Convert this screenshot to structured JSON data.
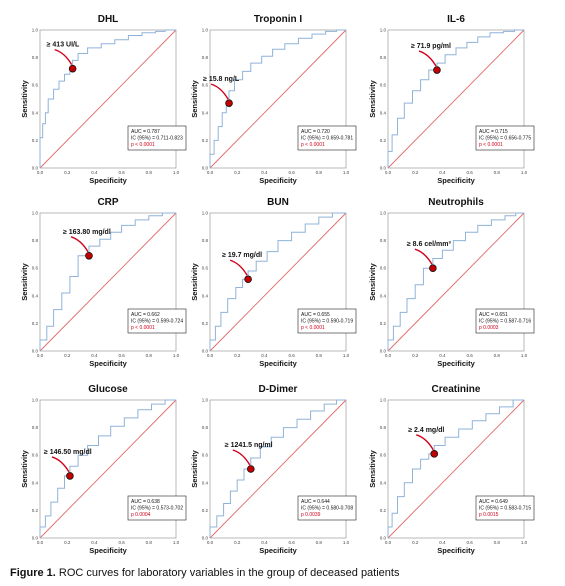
{
  "caption": {
    "label": "Figure 1.",
    "text": " ROC curves for laboratory variables in the group of deceased patients"
  },
  "colors": {
    "curve": "#8fb3d9",
    "reference": "#e06a6a",
    "marker": "#c40000",
    "arrow": "#d0021b",
    "p_text": "#d0021b"
  },
  "chart_data": [
    {
      "type": "line",
      "title": "DHL",
      "xlabel": "Specificity",
      "ylabel": "Sensitivity",
      "xlim": [
        0,
        1
      ],
      "ylim": [
        0,
        1
      ],
      "ticks": [
        "0.0",
        "0.2",
        "0.4",
        "0.6",
        "0.8",
        "1.0"
      ],
      "cutoff": {
        "label": "≥ 413 UI/L",
        "x": 0.24,
        "y": 0.72
      },
      "stats": {
        "auc": "AUC = 0.787",
        "ic": "IC (95%) = 0.711-0.823",
        "p": "p < 0.0001"
      },
      "series": [
        {
          "x": [
            0,
            0.02,
            0.04,
            0.06,
            0.1,
            0.14,
            0.18,
            0.22,
            0.24,
            0.28,
            0.35,
            0.45,
            0.55,
            0.65,
            0.75,
            0.85,
            0.92,
            1
          ],
          "y": [
            0,
            0.22,
            0.32,
            0.4,
            0.5,
            0.57,
            0.63,
            0.68,
            0.72,
            0.78,
            0.83,
            0.87,
            0.9,
            0.93,
            0.96,
            0.98,
            0.99,
            1
          ]
        },
        {
          "x": [
            0,
            1
          ],
          "y": [
            0,
            1
          ]
        }
      ]
    },
    {
      "type": "line",
      "title": "Troponin I",
      "xlabel": "Specificity",
      "ylabel": "Sensitivity",
      "xlim": [
        0,
        1
      ],
      "ylim": [
        0,
        1
      ],
      "ticks": [
        "0.0",
        "0.2",
        "0.4",
        "0.6",
        "0.8",
        "1.0"
      ],
      "cutoff": {
        "label": "≥ 15.8 ng/L",
        "x": 0.14,
        "y": 0.47
      },
      "stats": {
        "auc": "AUC = 0.720",
        "ic": "IC (95%) = 0.659-0.781",
        "p": "p < 0.0001"
      },
      "series": [
        {
          "x": [
            0,
            0.03,
            0.06,
            0.09,
            0.12,
            0.14,
            0.18,
            0.24,
            0.3,
            0.38,
            0.46,
            0.55,
            0.65,
            0.75,
            0.85,
            0.93,
            1
          ],
          "y": [
            0,
            0.1,
            0.2,
            0.3,
            0.4,
            0.47,
            0.56,
            0.64,
            0.7,
            0.76,
            0.81,
            0.86,
            0.9,
            0.94,
            0.97,
            0.99,
            1
          ]
        },
        {
          "x": [
            0,
            1
          ],
          "y": [
            0,
            1
          ]
        }
      ]
    },
    {
      "type": "line",
      "title": "IL-6",
      "xlabel": "Specificity",
      "ylabel": "Sensitivity",
      "xlim": [
        0,
        1
      ],
      "ylim": [
        0,
        1
      ],
      "ticks": [
        "0.0",
        "0.2",
        "0.4",
        "0.6",
        "0.8",
        "1.0"
      ],
      "cutoff": {
        "label": "≥ 71.9 pg/ml",
        "x": 0.36,
        "y": 0.71
      },
      "stats": {
        "auc": "AUC = 0.715",
        "ic": "IC (95%) = 0.656-0.775",
        "p": "p < 0.0001"
      },
      "series": [
        {
          "x": [
            0,
            0.03,
            0.07,
            0.12,
            0.18,
            0.24,
            0.3,
            0.36,
            0.42,
            0.5,
            0.58,
            0.66,
            0.75,
            0.85,
            0.93,
            1
          ],
          "y": [
            0,
            0.12,
            0.24,
            0.36,
            0.47,
            0.56,
            0.64,
            0.71,
            0.76,
            0.82,
            0.87,
            0.91,
            0.95,
            0.98,
            0.99,
            1
          ]
        },
        {
          "x": [
            0,
            1
          ],
          "y": [
            0,
            1
          ]
        }
      ]
    },
    {
      "type": "line",
      "title": "CRP",
      "xlabel": "Specificity",
      "ylabel": "Sensitivity",
      "xlim": [
        0,
        1
      ],
      "ylim": [
        0,
        1
      ],
      "ticks": [
        "0.0",
        "0.2",
        "0.4",
        "0.6",
        "0.8",
        "1.0"
      ],
      "cutoff": {
        "label": "≥ 163.80 mg/dl",
        "x": 0.36,
        "y": 0.69
      },
      "stats": {
        "auc": "AUC = 0.662",
        "ic": "IC (95%) = 0.599-0.724",
        "p": "p < 0.0001"
      },
      "series": [
        {
          "x": [
            0,
            0.05,
            0.1,
            0.16,
            0.22,
            0.28,
            0.36,
            0.44,
            0.52,
            0.6,
            0.7,
            0.8,
            0.9,
            1
          ],
          "y": [
            0,
            0.08,
            0.18,
            0.3,
            0.42,
            0.54,
            0.69,
            0.76,
            0.81,
            0.86,
            0.91,
            0.95,
            0.98,
            1
          ]
        },
        {
          "x": [
            0,
            1
          ],
          "y": [
            0,
            1
          ]
        }
      ]
    },
    {
      "type": "line",
      "title": "BUN",
      "xlabel": "Specificity",
      "ylabel": "Sensitivity",
      "xlim": [
        0,
        1
      ],
      "ylim": [
        0,
        1
      ],
      "ticks": [
        "0.0",
        "0.2",
        "0.4",
        "0.6",
        "0.8",
        "1.0"
      ],
      "cutoff": {
        "label": "≥ 19.7 mg/dl",
        "x": 0.28,
        "y": 0.52
      },
      "stats": {
        "auc": "AUC = 0.655",
        "ic": "IC (95%) = 0.590-0.719",
        "p": "p < 0.0001"
      },
      "series": [
        {
          "x": [
            0,
            0.04,
            0.08,
            0.13,
            0.19,
            0.24,
            0.28,
            0.34,
            0.42,
            0.5,
            0.6,
            0.7,
            0.8,
            0.9,
            1
          ],
          "y": [
            0,
            0.08,
            0.18,
            0.28,
            0.38,
            0.46,
            0.52,
            0.58,
            0.65,
            0.72,
            0.8,
            0.86,
            0.92,
            0.97,
            1
          ]
        },
        {
          "x": [
            0,
            1
          ],
          "y": [
            0,
            1
          ]
        }
      ]
    },
    {
      "type": "line",
      "title": "Neutrophils",
      "xlabel": "Specificity",
      "ylabel": "Sensitivity",
      "xlim": [
        0,
        1
      ],
      "ylim": [
        0,
        1
      ],
      "ticks": [
        "0.0",
        "0.2",
        "0.4",
        "0.6",
        "0.8",
        "1.0"
      ],
      "cutoff": {
        "label": "≥ 8.6 cel/mm³",
        "x": 0.33,
        "y": 0.6
      },
      "stats": {
        "auc": "AUC = 0.651",
        "ic": "IC (95%) = 0.587-0.716",
        "p": "p 0.0003"
      },
      "series": [
        {
          "x": [
            0,
            0.04,
            0.09,
            0.14,
            0.2,
            0.26,
            0.33,
            0.4,
            0.48,
            0.57,
            0.66,
            0.76,
            0.86,
            0.94,
            1
          ],
          "y": [
            0,
            0.08,
            0.18,
            0.28,
            0.38,
            0.48,
            0.6,
            0.67,
            0.73,
            0.8,
            0.86,
            0.91,
            0.95,
            0.98,
            1
          ]
        },
        {
          "x": [
            0,
            1
          ],
          "y": [
            0,
            1
          ]
        }
      ]
    },
    {
      "type": "line",
      "title": "Glucose",
      "xlabel": "Specificity",
      "ylabel": "Sensitivity",
      "xlim": [
        0,
        1
      ],
      "ylim": [
        0,
        1
      ],
      "ticks": [
        "0.0",
        "0.2",
        "0.4",
        "0.6",
        "0.8",
        "1.0"
      ],
      "cutoff": {
        "label": "≥ 146.50 mg/dl",
        "x": 0.22,
        "y": 0.45
      },
      "stats": {
        "auc": "AUC = 0.638",
        "ic": "IC (95%) = 0.573-0.702",
        "p": "p 0.0004"
      },
      "series": [
        {
          "x": [
            0,
            0.04,
            0.08,
            0.13,
            0.18,
            0.22,
            0.28,
            0.35,
            0.43,
            0.52,
            0.62,
            0.72,
            0.82,
            0.92,
            1
          ],
          "y": [
            0,
            0.08,
            0.16,
            0.26,
            0.36,
            0.45,
            0.52,
            0.6,
            0.67,
            0.74,
            0.81,
            0.87,
            0.93,
            0.97,
            1
          ]
        },
        {
          "x": [
            0,
            1
          ],
          "y": [
            0,
            1
          ]
        }
      ]
    },
    {
      "type": "line",
      "title": "D-Dimer",
      "xlabel": "Specificity",
      "ylabel": "Sensitivity",
      "xlim": [
        0,
        1
      ],
      "ylim": [
        0,
        1
      ],
      "ticks": [
        "0.0",
        "0.2",
        "0.4",
        "0.6",
        "0.8",
        "1.0"
      ],
      "cutoff": {
        "label": "≥ 1241.5 ng/ml",
        "x": 0.3,
        "y": 0.5
      },
      "stats": {
        "auc": "AUC = 0.644",
        "ic": "IC (95%) = 0.580-0.708",
        "p": "p 0.0039"
      },
      "series": [
        {
          "x": [
            0,
            0.05,
            0.1,
            0.15,
            0.2,
            0.25,
            0.3,
            0.37,
            0.45,
            0.54,
            0.64,
            0.74,
            0.84,
            0.93,
            1
          ],
          "y": [
            0,
            0.08,
            0.16,
            0.25,
            0.34,
            0.42,
            0.5,
            0.58,
            0.66,
            0.73,
            0.8,
            0.86,
            0.92,
            0.97,
            1
          ]
        },
        {
          "x": [
            0,
            1
          ],
          "y": [
            0,
            1
          ]
        }
      ]
    },
    {
      "type": "line",
      "title": "Creatinine",
      "xlabel": "Specificity",
      "ylabel": "Sensitivity",
      "xlim": [
        0,
        1
      ],
      "ylim": [
        0,
        1
      ],
      "ticks": [
        "0.0",
        "0.2",
        "0.4",
        "0.6",
        "0.8",
        "1.0"
      ],
      "cutoff": {
        "label": "≥ 2.4 mg/dl",
        "x": 0.34,
        "y": 0.61
      },
      "stats": {
        "auc": "AUC = 0.649",
        "ic": "IC (95%) = 0.583-0.715",
        "p": "p 0.0015"
      },
      "series": [
        {
          "x": [
            0,
            0.03,
            0.07,
            0.12,
            0.18,
            0.24,
            0.3,
            0.34,
            0.42,
            0.52,
            0.62,
            0.72,
            0.82,
            0.92,
            1
          ],
          "y": [
            0,
            0.08,
            0.18,
            0.3,
            0.4,
            0.5,
            0.57,
            0.61,
            0.67,
            0.73,
            0.79,
            0.85,
            0.9,
            0.95,
            1
          ]
        },
        {
          "x": [
            0,
            1
          ],
          "y": [
            0,
            1
          ]
        }
      ]
    }
  ]
}
